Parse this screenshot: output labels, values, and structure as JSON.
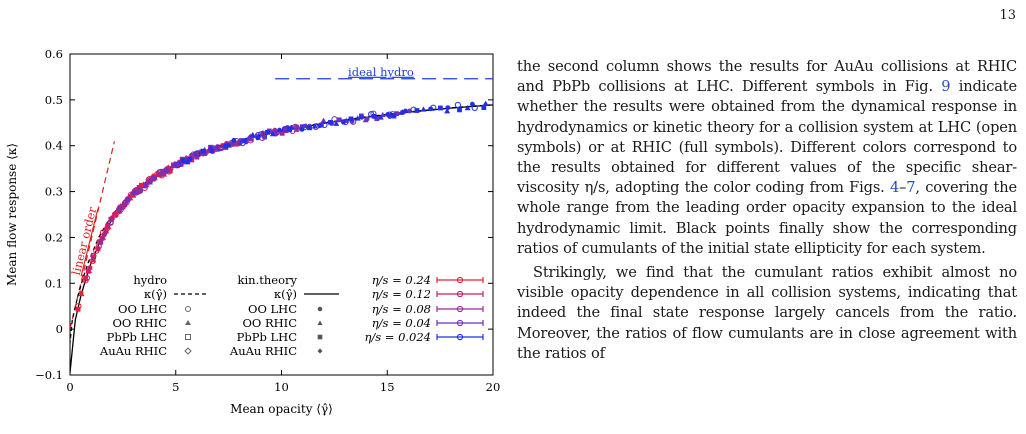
{
  "page_number": "13",
  "paragraphs": [
    [
      {
        "t": "the second column shows the results for AuAu collisions at RHIC and PbPb collisions at LHC. Different symbols in Fig. "
      },
      {
        "t": "9",
        "link": true
      },
      {
        "t": " indicate whether the results were obtained from the dynamical response in hydrodynamics or kinetic theory for a collision system at LHC (open symbols) or at RHIC (full symbols). Different colors correspond to the results obtained for different values of the specific shear-viscosity η/s, adopting the color coding from Figs. "
      },
      {
        "t": "4",
        "link": true
      },
      {
        "t": "–"
      },
      {
        "t": "7",
        "link": true
      },
      {
        "t": ", covering the whole range from the leading order opacity expansion to the ideal hydrodynamic limit. Black points finally show the corresponding ratios of cumulants of the initial state ellipticity for each system."
      }
    ],
    [
      {
        "t": "Strikingly, we find that the cumulant ratios exhibit almost no visible opacity dependence in all collision systems, indicating that indeed the final state response largely cancels from the ratio. Moreover, the ratios of flow cumulants are in close agreement with the ratios of"
      }
    ]
  ],
  "colors": {
    "ideal_hydro": "#1f3fe0",
    "linear_order": "#e02020",
    "eta_0_24": "#e8203a",
    "eta_0_12": "#c8206a",
    "eta_0_08": "#9a2a9a",
    "eta_0_04": "#7030c0",
    "eta_0_024": "#2030e8"
  },
  "chart_data": {
    "type": "scatter",
    "xlabel": "Mean opacity ⟨γ̂⟩",
    "ylabel": "Mean flow response ⟨κ⟩",
    "xlim": [
      0,
      20
    ],
    "ylim": [
      -0.1,
      0.6
    ],
    "x_ticks": [
      "0",
      "5",
      "10",
      "15",
      "20"
    ],
    "y_ticks": [
      "−0.1",
      "0",
      "0.1",
      "0.2",
      "0.3",
      "0.4",
      "0.5",
      "0.6"
    ],
    "annotations": {
      "ideal_hydro": "ideal hydro",
      "ideal_hydro_value": 0.546,
      "ideal_hydro_x_start": 9.7,
      "linear_order": "linear order",
      "linear_order_slope": 0.195
    },
    "legend": {
      "hydro_header": "hydro",
      "kin_header": "kin.theory",
      "kappa": "κ(γ̂)",
      "hydro_systems": [
        "OO LHC",
        "OO RHIC",
        "PbPb LHC",
        "AuAu RHIC"
      ],
      "kin_systems": [
        "OO LHC",
        "OO RHIC",
        "PbPb LHC",
        "AuAu RHIC"
      ],
      "eta_entries": [
        "η/s = 0.24",
        "η/s = 0.12",
        "η/s = 0.08",
        "η/s = 0.04",
        "η/s = 0.024"
      ]
    },
    "curve": {
      "name": "κ(γ̂)",
      "x": [
        0.25,
        0.5,
        0.75,
        1,
        1.5,
        2,
        2.5,
        3,
        4,
        5,
        6,
        7,
        8,
        9,
        10,
        12,
        14,
        16,
        18,
        20
      ],
      "y": [
        0.02,
        0.07,
        0.11,
        0.145,
        0.2,
        0.24,
        0.27,
        0.295,
        0.33,
        0.358,
        0.38,
        0.397,
        0.41,
        0.422,
        0.432,
        0.449,
        0.462,
        0.473,
        0.482,
        0.489
      ]
    },
    "series": [
      {
        "name": "η/s = 0.24",
        "x_range": [
          0.4,
          5.0
        ],
        "values_follow": "κ(γ̂)"
      },
      {
        "name": "η/s = 0.12",
        "x_range": [
          0.8,
          8.0
        ],
        "values_follow": "κ(γ̂)"
      },
      {
        "name": "η/s = 0.08",
        "x_range": [
          1.2,
          11.0
        ],
        "values_follow": "κ(γ̂)"
      },
      {
        "name": "η/s = 0.04",
        "x_range": [
          2.5,
          16.0
        ],
        "values_follow": "κ(γ̂)"
      },
      {
        "name": "η/s = 0.024",
        "x_range": [
          5.0,
          20.0
        ],
        "values_follow": "κ(γ̂)"
      }
    ]
  }
}
